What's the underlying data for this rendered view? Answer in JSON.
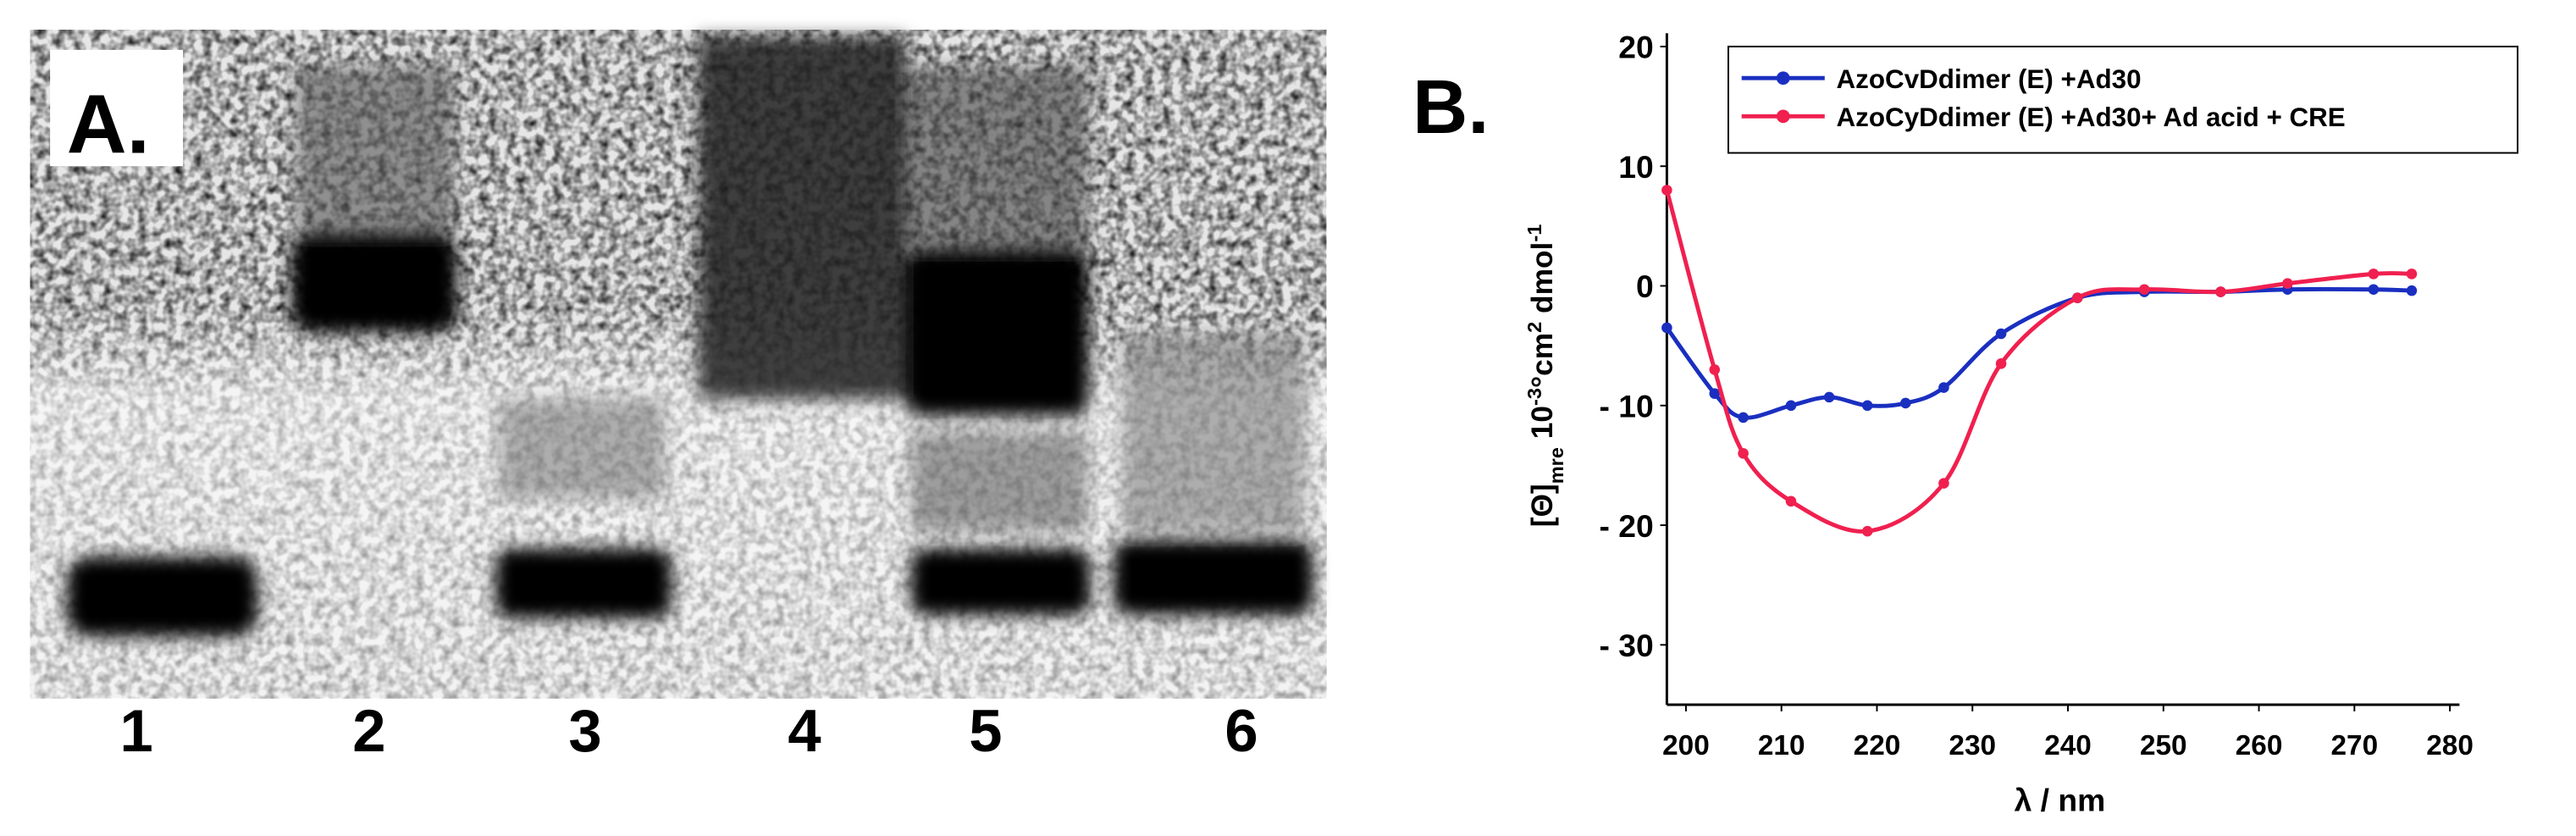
{
  "panel_a": {
    "label": "A.",
    "lanes": [
      "1",
      "2",
      "3",
      "4",
      "5",
      "6"
    ]
  },
  "chart_data": {
    "type": "line",
    "panel_label": "B.",
    "xlabel": "λ / nm",
    "ylabel": [
      {
        "text": "[Θ]"
      },
      {
        "text": "mre",
        "shift": "sub"
      },
      {
        "text": " 10"
      },
      {
        "text": "-3",
        "shift": "super"
      },
      {
        "text": "°cm"
      },
      {
        "text": "2",
        "shift": "super"
      },
      {
        "text": " dmol"
      },
      {
        "text": "-1",
        "shift": "super"
      }
    ],
    "xlim": [
      198,
      281
    ],
    "xticks": [
      200,
      210,
      220,
      230,
      240,
      250,
      260,
      270,
      280
    ],
    "ylim": [
      -35,
      20
    ],
    "yticks": [
      20,
      10,
      0,
      {
        "value": -10,
        "label": "- 10"
      },
      {
        "value": -20,
        "label": "- 20"
      },
      {
        "value": -30,
        "label": "- 30"
      }
    ],
    "grid": false,
    "legend": "upper right",
    "series": [
      {
        "name": "AzoCvDdimer (E) +Ad30",
        "color": "#1a2fc0",
        "x": [
          198,
          203,
          206,
          211,
          215,
          219,
          223,
          227,
          233,
          241,
          248,
          256,
          263,
          272,
          276
        ],
        "values": [
          -3.5,
          -9,
          -11,
          -10,
          -9.3,
          -10,
          -9.8,
          -8.5,
          -4,
          -1,
          -0.5,
          -0.5,
          -0.3,
          -0.3,
          -0.4
        ]
      },
      {
        "name": "AzoCyDdimer (E) +Ad30+ Ad acid + CRE",
        "color": "#f0204f",
        "x": [
          198,
          203,
          206,
          211,
          219,
          227,
          233,
          241,
          248,
          256,
          263,
          272,
          276
        ],
        "values": [
          8,
          -7,
          -14,
          -18,
          -20.5,
          -16.5,
          -6.5,
          -1,
          -0.3,
          -0.5,
          0.2,
          1,
          1
        ]
      }
    ]
  }
}
